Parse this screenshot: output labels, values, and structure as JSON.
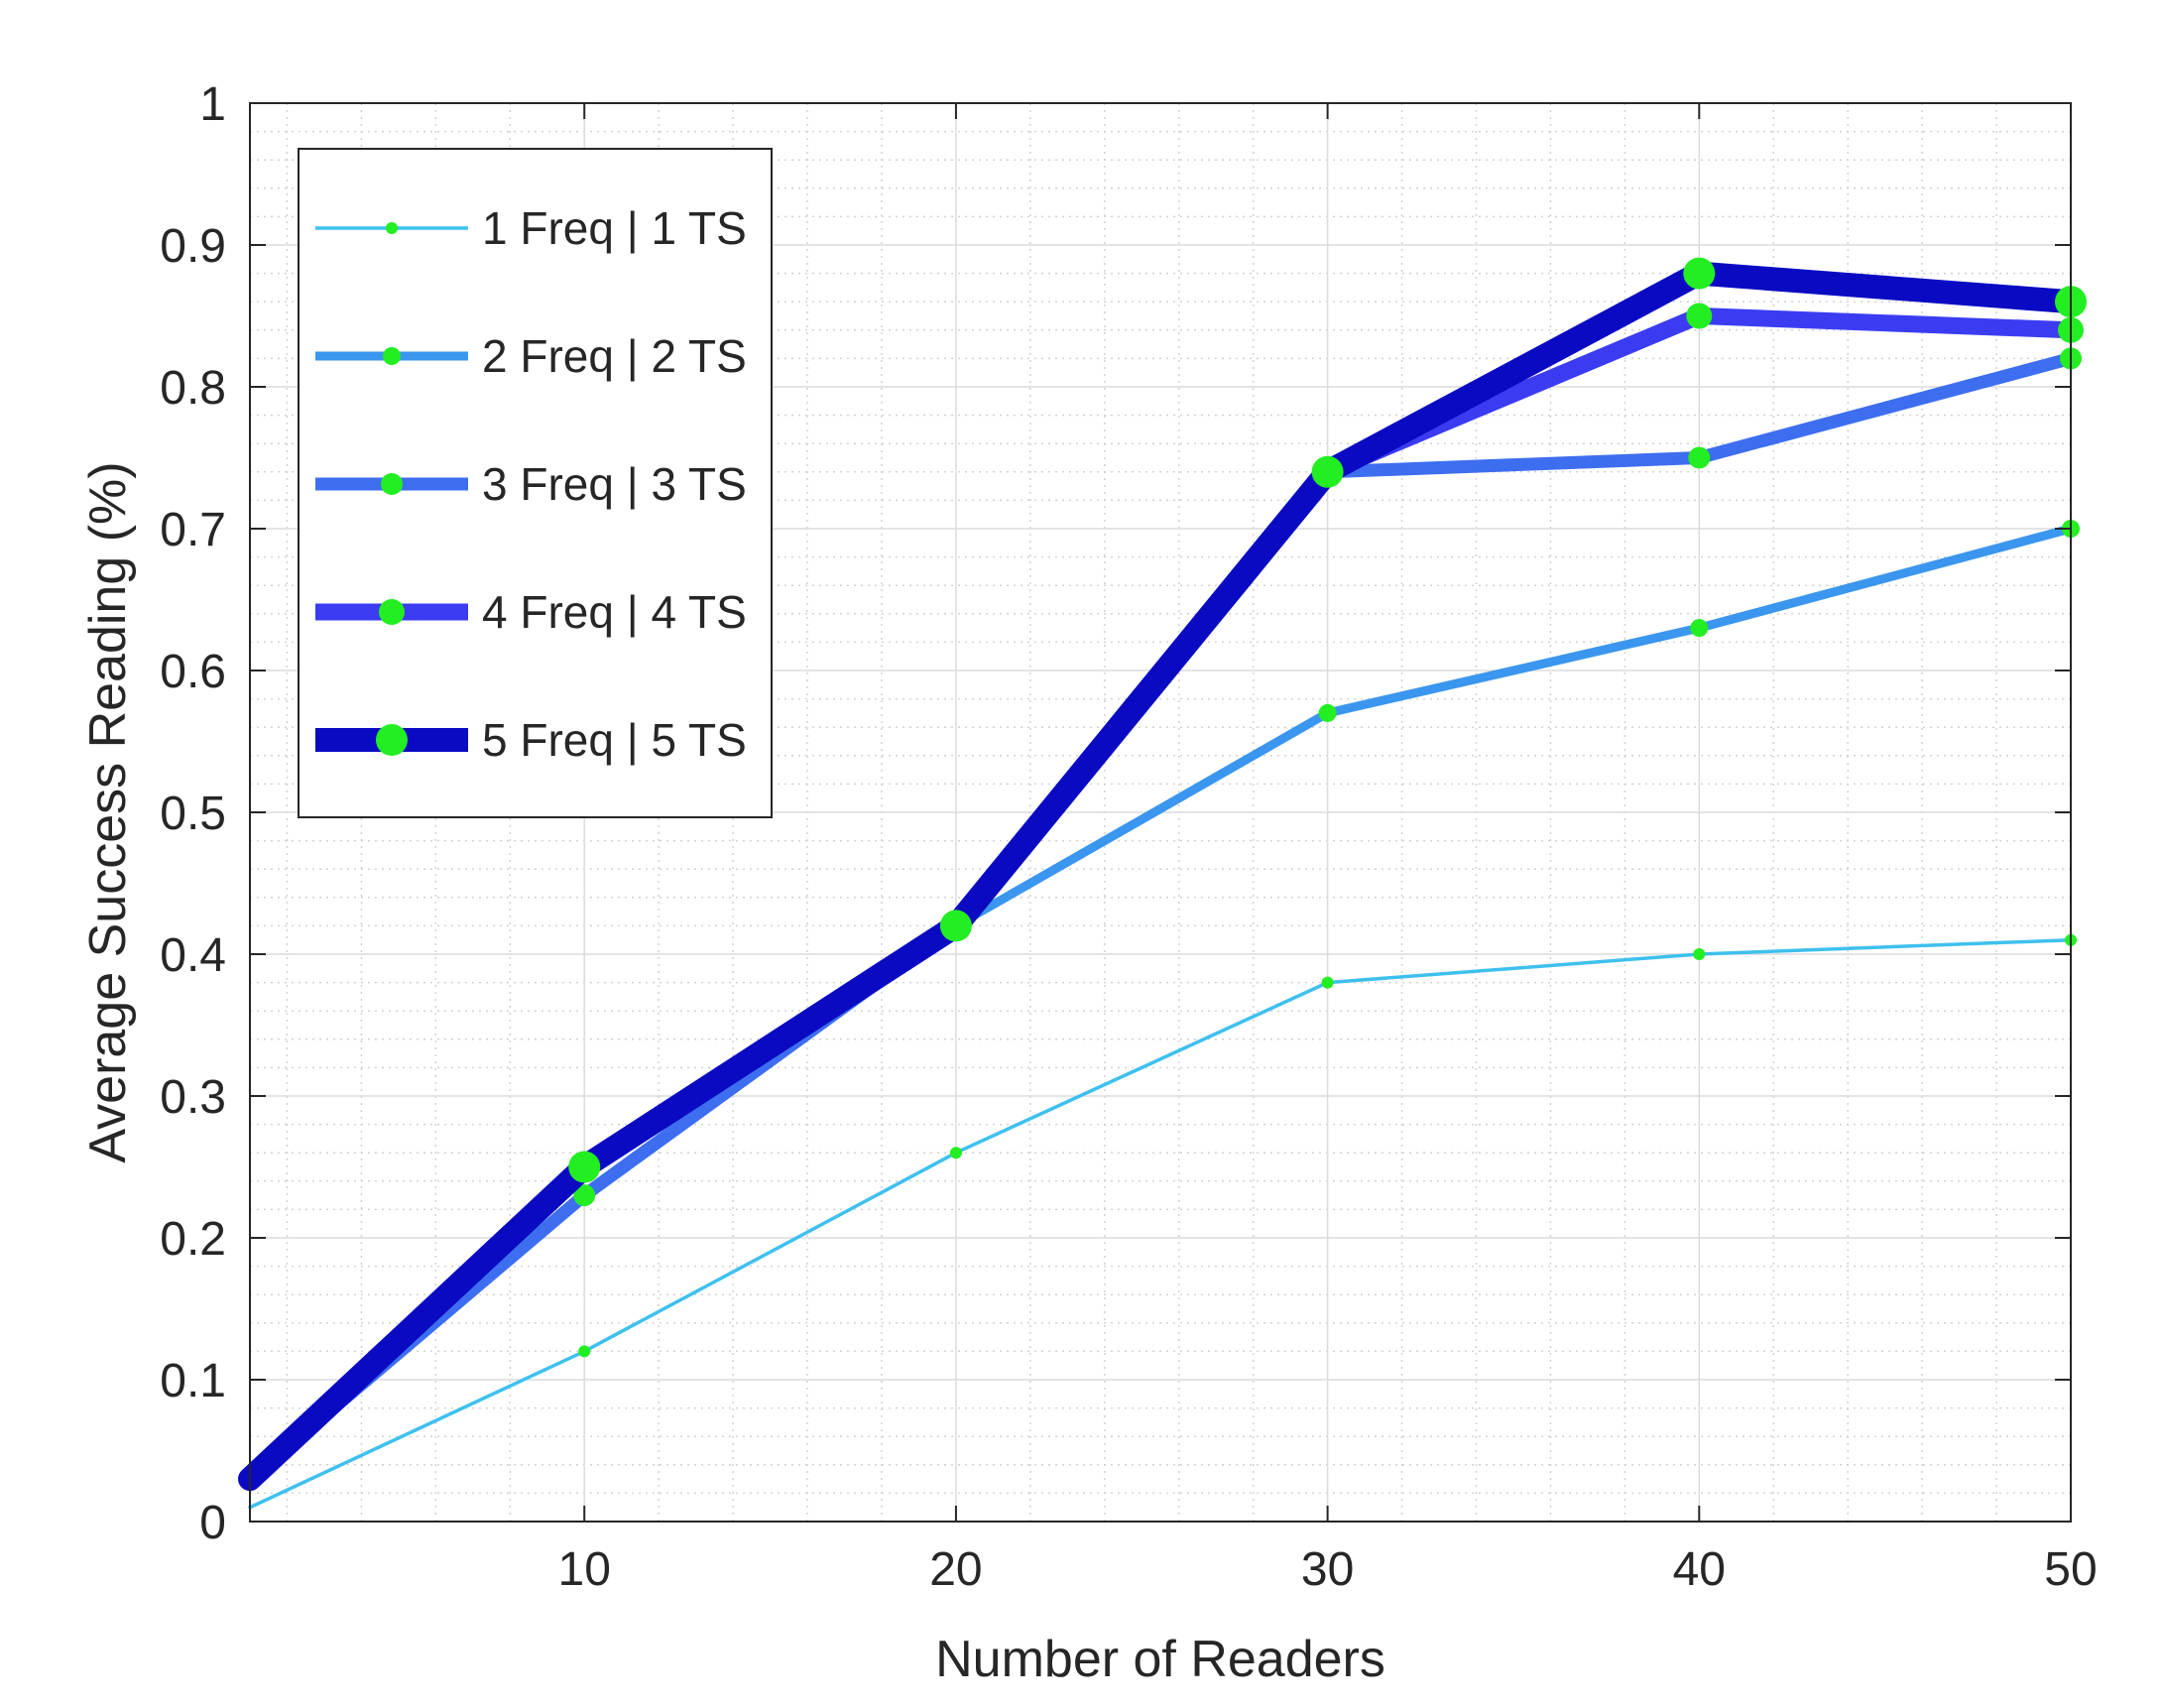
{
  "chart_data": {
    "type": "line",
    "title": "",
    "xlabel": "Number of Readers",
    "ylabel": "Average Success Reading (%)",
    "xlim": [
      1,
      50
    ],
    "ylim": [
      0,
      1
    ],
    "x_ticks": [
      10,
      20,
      30,
      40,
      50
    ],
    "y_ticks": [
      0,
      0.1,
      0.2,
      0.3,
      0.4,
      0.5,
      0.6,
      0.7,
      0.8,
      0.9,
      1
    ],
    "x_tick_labels": [
      "10",
      "20",
      "30",
      "40",
      "50"
    ],
    "y_tick_labels": [
      "0",
      "0.1",
      "0.2",
      "0.3",
      "0.4",
      "0.5",
      "0.6",
      "0.7",
      "0.8",
      "0.9",
      "1"
    ],
    "grid": true,
    "minor_grid": true,
    "legend_position": "top-left",
    "marker_color": "#22ee22",
    "x": [
      1,
      10,
      20,
      30,
      40,
      50
    ],
    "series": [
      {
        "name": "1 Freq | 1 TS",
        "color": "#3ec0ee",
        "values": [
          0.01,
          0.12,
          0.26,
          0.38,
          0.4,
          0.41
        ]
      },
      {
        "name": "2 Freq | 2 TS",
        "color": "#3a96ee",
        "values": [
          0.03,
          0.23,
          0.42,
          0.57,
          0.63,
          0.7
        ]
      },
      {
        "name": "3 Freq | 3 TS",
        "color": "#3d6ef0",
        "values": [
          0.03,
          0.23,
          0.42,
          0.74,
          0.75,
          0.82
        ]
      },
      {
        "name": "4 Freq | 4 TS",
        "color": "#3b3cf2",
        "values": [
          0.03,
          0.25,
          0.42,
          0.74,
          0.85,
          0.84
        ]
      },
      {
        "name": "5 Freq | 5 TS",
        "color": "#0a0ac2",
        "values": [
          0.03,
          0.25,
          0.42,
          0.74,
          0.88,
          0.86
        ]
      }
    ]
  }
}
